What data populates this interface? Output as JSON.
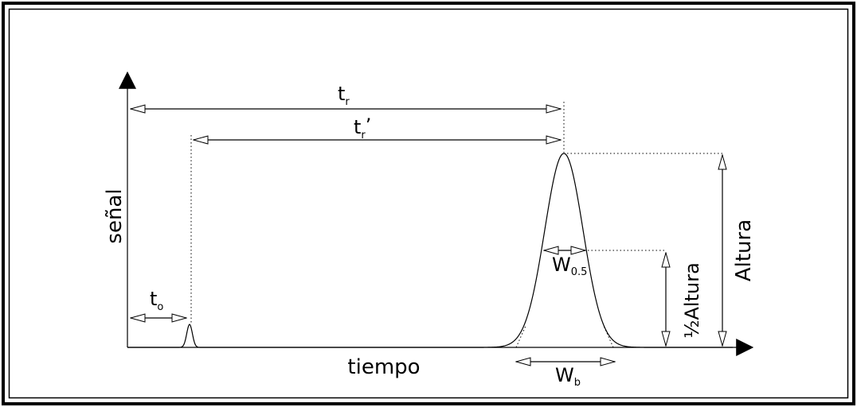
{
  "axes": {
    "y_label": "señal",
    "x_label": "tiempo"
  },
  "labels": {
    "t_r": {
      "main": "t",
      "sub": "r"
    },
    "t_r_prime": {
      "main": "t",
      "sub": "r",
      "prime": "’"
    },
    "t_o": {
      "main": "t",
      "sub": "o"
    },
    "height": "Altura",
    "half_height": "½Altura",
    "w_half": {
      "main": "W",
      "sub": "0.5"
    },
    "w_base": {
      "main": "W",
      "sub": "b"
    }
  }
}
